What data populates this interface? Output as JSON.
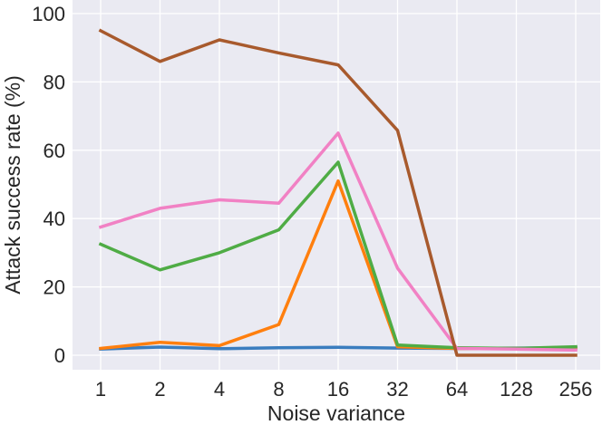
{
  "chart_data": {
    "type": "line",
    "xlabel": "Noise variance",
    "ylabel": "Attack success rate (%)",
    "ylim": [
      0,
      100
    ],
    "yticks": [
      0,
      20,
      40,
      60,
      80,
      100
    ],
    "x": [
      "1",
      "2",
      "4",
      "8",
      "16",
      "32",
      "64",
      "128",
      "256"
    ],
    "grid": true,
    "background": "#eaeaf2",
    "series": [
      {
        "color": "#3a7dbf",
        "values": [
          1.8,
          2.4,
          1.9,
          2.2,
          2.3,
          2.1,
          2.0,
          2.1,
          2.2
        ]
      },
      {
        "color": "#ff7f0e",
        "values": [
          2.0,
          3.8,
          2.8,
          9.0,
          51.0,
          2.5,
          2.0,
          2.0,
          2.0
        ]
      },
      {
        "color": "#4fac45",
        "values": [
          32.5,
          25.0,
          30.0,
          36.7,
          56.5,
          3.0,
          2.2,
          2.0,
          2.5
        ]
      },
      {
        "color": "#f181c4",
        "values": [
          37.5,
          43.0,
          45.5,
          44.5,
          65.0,
          25.5,
          2.0,
          1.8,
          1.5
        ]
      },
      {
        "color": "#a85a2d",
        "values": [
          95.0,
          86.0,
          92.3,
          88.5,
          85.0,
          65.8,
          0.0,
          0.0,
          0.0
        ]
      }
    ]
  }
}
